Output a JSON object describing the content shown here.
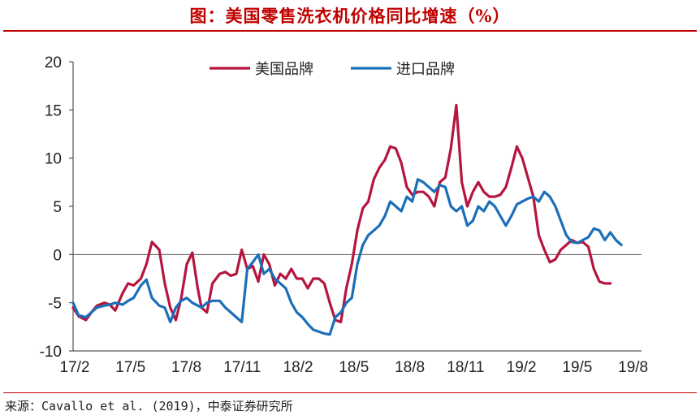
{
  "title": "图：美国零售洗衣机价格同比增速（%）",
  "source": "来源：Cavallo et al. (2019)，中泰证券研究所",
  "chart_data": {
    "type": "line",
    "title": "图：美国零售洗衣机价格同比增速（%）",
    "xlabel": "",
    "ylabel": "",
    "ylim": [
      -10,
      20
    ],
    "yticks": [
      "-10",
      "-5",
      "0",
      "5",
      "10",
      "15",
      "20"
    ],
    "xticks": [
      "17/2",
      "17/5",
      "17/8",
      "17/11",
      "18/2",
      "18/5",
      "18/8",
      "18/11",
      "19/2",
      "19/5",
      "19/8"
    ],
    "x_range": [
      0,
      31
    ],
    "legend_position": "top",
    "grid": false,
    "series": [
      {
        "name": "美国品牌",
        "color": "#b5153e",
        "x": [
          0,
          0.3,
          0.7,
          1,
          1.3,
          1.7,
          2,
          2.3,
          2.7,
          3,
          3.3,
          3.7,
          4,
          4.3,
          4.7,
          5,
          5.3,
          5.6,
          5.9,
          6.2,
          6.5,
          6.8,
          7,
          7.3,
          7.6,
          8,
          8.3,
          8.6,
          8.9,
          9.2,
          9.5,
          9.8,
          10.1,
          10.4,
          10.7,
          11,
          11.3,
          11.6,
          11.9,
          12.2,
          12.5,
          12.8,
          13.1,
          13.4,
          13.7,
          14,
          14.3,
          14.6,
          14.9,
          15.2,
          15.5,
          15.8,
          16.1,
          16.4,
          16.7,
          17,
          17.3,
          17.6,
          17.9,
          18.2,
          18.5,
          18.8,
          19.1,
          19.4,
          19.7,
          20,
          20.3,
          20.6,
          20.9,
          21.2,
          21.5,
          21.8,
          22.1,
          22.4,
          22.7,
          23,
          23.3,
          23.6,
          23.9,
          24.2,
          24.5,
          24.8,
          25.1,
          25.4,
          25.7,
          26,
          26.3,
          26.6,
          26.9,
          27.2,
          27.5,
          27.8,
          28.1,
          28.4,
          28.7,
          29,
          29.3,
          29.6,
          29.9,
          30.2,
          30.5
        ],
        "values": [
          -5.5,
          -6.4,
          -6.8,
          -6.0,
          -5.3,
          -5.0,
          -5.2,
          -5.8,
          -4.0,
          -3.0,
          -3.2,
          -2.5,
          -1.0,
          1.3,
          0.5,
          -3.0,
          -5.5,
          -6.8,
          -4.5,
          -1.0,
          0.2,
          -3.5,
          -5.5,
          -6.0,
          -3.0,
          -2.0,
          -1.8,
          -2.2,
          -2.0,
          0.5,
          -1.5,
          -1.2,
          -2.8,
          0.0,
          -1.0,
          -3.2,
          -2.0,
          -2.5,
          -1.5,
          -2.5,
          -2.5,
          -3.5,
          -2.5,
          -2.5,
          -3.0,
          -5.0,
          -6.8,
          -7.0,
          -3.5,
          -1.0,
          2.5,
          4.8,
          5.5,
          7.8,
          9.0,
          9.8,
          11.2,
          11.0,
          9.5,
          7.0,
          6.2,
          6.5,
          6.5,
          6.0,
          5.0,
          7.5,
          8.0,
          11.0,
          15.5,
          7.5,
          5.0,
          6.5,
          7.5,
          6.5,
          6.0,
          6.0,
          6.2,
          7.0,
          9.0,
          11.2,
          10.0,
          8.0,
          6.0,
          2.0,
          0.5,
          -0.8,
          -0.5,
          0.5,
          1.0,
          1.5,
          1.2,
          1.3,
          0.8,
          -1.5,
          -2.8,
          -3.0,
          -3.0,
          -3.0,
          -3.0,
          -3.0,
          -3.0
        ],
        "x_end_index": 96
      },
      {
        "name": "进口品牌",
        "color": "#1a6fb8",
        "x": [
          0,
          0.3,
          0.7,
          1,
          1.3,
          1.7,
          2,
          2.3,
          2.7,
          3,
          3.3,
          3.7,
          4,
          4.3,
          4.7,
          5,
          5.3,
          5.6,
          5.9,
          6.2,
          6.5,
          6.8,
          7,
          7.3,
          7.6,
          8,
          8.3,
          8.6,
          8.9,
          9.2,
          9.5,
          9.8,
          10.1,
          10.4,
          10.7,
          11,
          11.3,
          11.6,
          11.9,
          12.2,
          12.5,
          12.8,
          13.1,
          13.4,
          13.7,
          14,
          14.3,
          14.6,
          14.9,
          15.2,
          15.5,
          15.8,
          16.1,
          16.4,
          16.7,
          17,
          17.3,
          17.6,
          17.9,
          18.2,
          18.5,
          18.8,
          19.1,
          19.4,
          19.7,
          20,
          20.3,
          20.6,
          20.9,
          21.2,
          21.5,
          21.8,
          22.1,
          22.4,
          22.7,
          23,
          23.3,
          23.6,
          23.9,
          24.2,
          24.5,
          24.8,
          25.1,
          25.4,
          25.7,
          26,
          26.3,
          26.6,
          26.9,
          27.2,
          27.5,
          27.8,
          28.1,
          28.4,
          28.7,
          29,
          29.3,
          29.6,
          29.9,
          30.2,
          30.5
        ],
        "values": [
          -5.0,
          -6.3,
          -6.5,
          -6.0,
          -5.5,
          -5.3,
          -5.2,
          -5.0,
          -5.2,
          -4.8,
          -4.5,
          -3.2,
          -2.6,
          -4.5,
          -5.3,
          -5.5,
          -7.0,
          -5.5,
          -4.8,
          -4.5,
          -5.0,
          -5.3,
          -5.5,
          -5.0,
          -4.8,
          -4.8,
          -5.5,
          -6.0,
          -6.5,
          -7.0,
          -1.5,
          -0.8,
          0.0,
          -2.0,
          -1.5,
          -2.5,
          -3.0,
          -3.5,
          -5.0,
          -6.0,
          -6.5,
          -7.2,
          -7.8,
          -8.0,
          -8.2,
          -8.3,
          -6.5,
          -6.0,
          -5.0,
          -4.5,
          -1.0,
          1.0,
          2.0,
          2.5,
          3.0,
          4.0,
          5.5,
          5.0,
          4.5,
          6.0,
          5.5,
          7.8,
          7.5,
          7.0,
          6.5,
          7.2,
          7.0,
          5.0,
          4.5,
          5.0,
          3.0,
          3.5,
          5.0,
          4.5,
          5.5,
          5.0,
          4.0,
          3.0,
          4.0,
          5.2,
          5.5,
          5.8,
          6.0,
          5.5,
          6.5,
          6.0,
          5.0,
          3.5,
          2.0,
          1.3,
          1.2,
          1.5,
          1.8,
          2.7,
          2.5,
          1.5,
          2.3,
          1.5,
          1.0,
          1.0,
          1.0
        ],
        "x_end_index": 98
      }
    ]
  }
}
